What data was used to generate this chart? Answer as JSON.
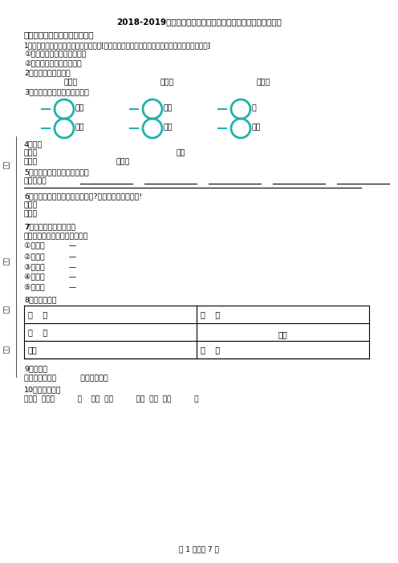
{
  "title": "2018-2019年敦化市第八小学校一年级下册语文期末测试含答案",
  "section1": "一、想一想，填一填（填空题）",
  "q1_text": "1．我想换个词说说，句子意思不改变。[方法提示：想想划线字的意思，再换一个意思相近的词]",
  "q1_a": "①妈妈讲了许多勇敢的故事。",
  "q1_b": "②妈妈非要我睡觉前刷牙。",
  "q2_text": "2．填上合适的词语。",
  "q2_items": [
    "的故事",
    "的夜晚",
    "的胆子"
  ],
  "q3_text": "3．在圆圈中填上合适的量词。",
  "q3_items": [
    "小鸟",
    "小河",
    "敌",
    "高山",
    "老师",
    "种子"
  ],
  "q4_text": "4．填空",
  "q4_a": "弯弯的",
  "q4_b": "的船",
  "q4_c": "闪闪的",
  "q4_d": "蓝蓝的",
  "q5_text": "5．我会看图，照样子写一写。",
  "q5_sub": "一位小朋友",
  "q6_text": "6．猜字游戏，你能猜出几个答案?越多越好，写下来吧!",
  "q6_sub": "一日。",
  "q6_answer": "谜底：",
  "q7_text": "7．附加题：词语接龙。",
  "q7_example": "例：生活一（活动）一（动力）",
  "q7_items": [
    "①国家一          —",
    "②许多一          —",
    "③帮助一          —",
    "④共同一          —",
    "⑤大海一          —"
  ],
  "q8_text": "8．填字成词。",
  "table_data": [
    [
      "无    无",
      "自    自"
    ],
    [
      "楼    夏",
      "往往"
    ],
    [
      "不约",
      "春    秋"
    ]
  ],
  "q9_text": "9．填空。",
  "q9_sub": "《春晓》是描写          季节的古诗。",
  "q10_text": "10．选字填空。",
  "q10_sub": "（咪咪  眯眯）          叫    （眯  咪）          眼睛  （谜  米）          语",
  "footer": "第 1 页，共 7 页",
  "left_label1": "分数",
  "left_label2": "班级",
  "left_label3": "题号",
  "left_label4": "成绩",
  "bg_color": "#ffffff",
  "text_color": "#000000",
  "circle_color": "#20b2aa",
  "line_color": "#000000"
}
